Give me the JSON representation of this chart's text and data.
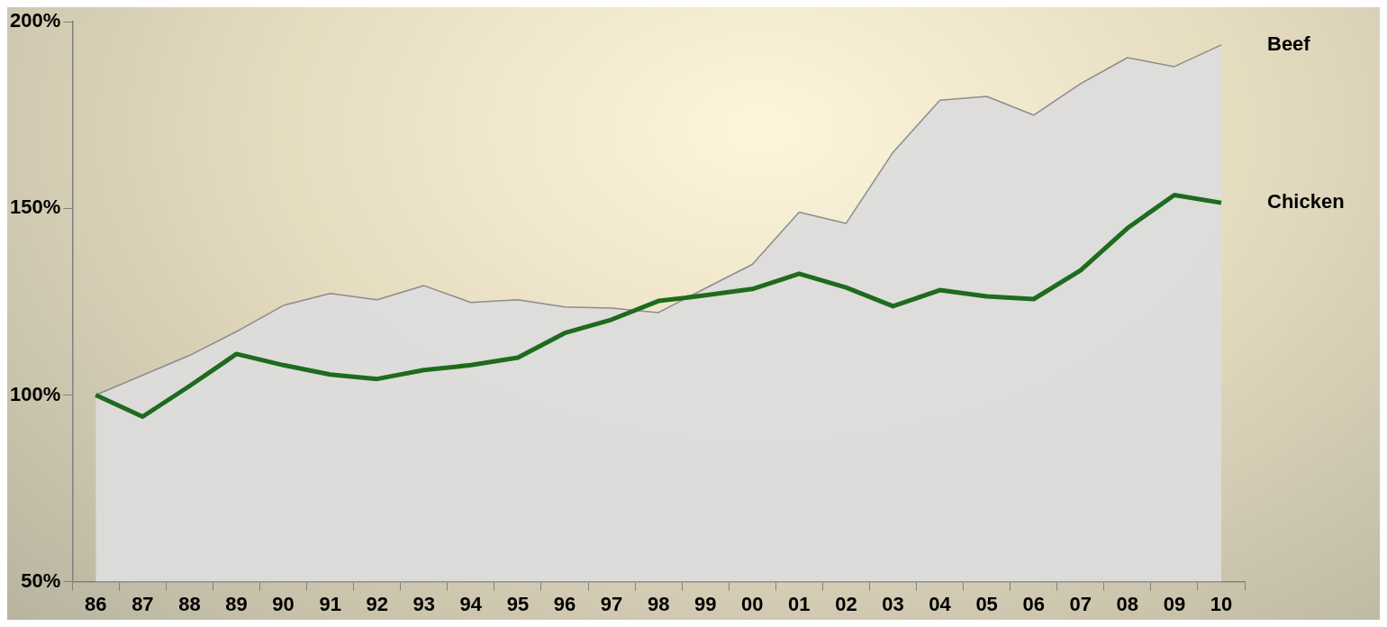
{
  "chart_data": {
    "type": "line",
    "categories": [
      "86",
      "87",
      "88",
      "89",
      "90",
      "91",
      "92",
      "93",
      "94",
      "95",
      "96",
      "97",
      "98",
      "99",
      "00",
      "01",
      "02",
      "03",
      "04",
      "05",
      "06",
      "07",
      "08",
      "09",
      "10"
    ],
    "series": [
      {
        "name": "Beef",
        "type": "area",
        "color": "#8c8c8c",
        "values": [
          100,
          105.3,
          110.6,
          117,
          124,
          127.2,
          125.5,
          129.3,
          124.8,
          125.5,
          123.6,
          123.3,
          122.1,
          128.6,
          135,
          149,
          146,
          165,
          179,
          180,
          175,
          183.4,
          190.4,
          188,
          193.8
        ]
      },
      {
        "name": "Chicken",
        "type": "line",
        "color": "#1e6b1e",
        "values": [
          100,
          94.2,
          102.4,
          111,
          108,
          105.5,
          104.3,
          106.7,
          108,
          110,
          116.6,
          120.2,
          125.2,
          126.7,
          128.4,
          132.5,
          128.8,
          123.8,
          128.1,
          126.4,
          125.7,
          133.4,
          144.7,
          153.6,
          151.5
        ]
      }
    ],
    "ylim": [
      50,
      200
    ],
    "yticks": [
      {
        "value": 50,
        "label": "50%"
      },
      {
        "value": 100,
        "label": "100%"
      },
      {
        "value": 150,
        "label": "150%"
      },
      {
        "value": 200,
        "label": "200%"
      }
    ],
    "grid": false,
    "legend": false,
    "marker": "none",
    "line_style": "solid"
  }
}
